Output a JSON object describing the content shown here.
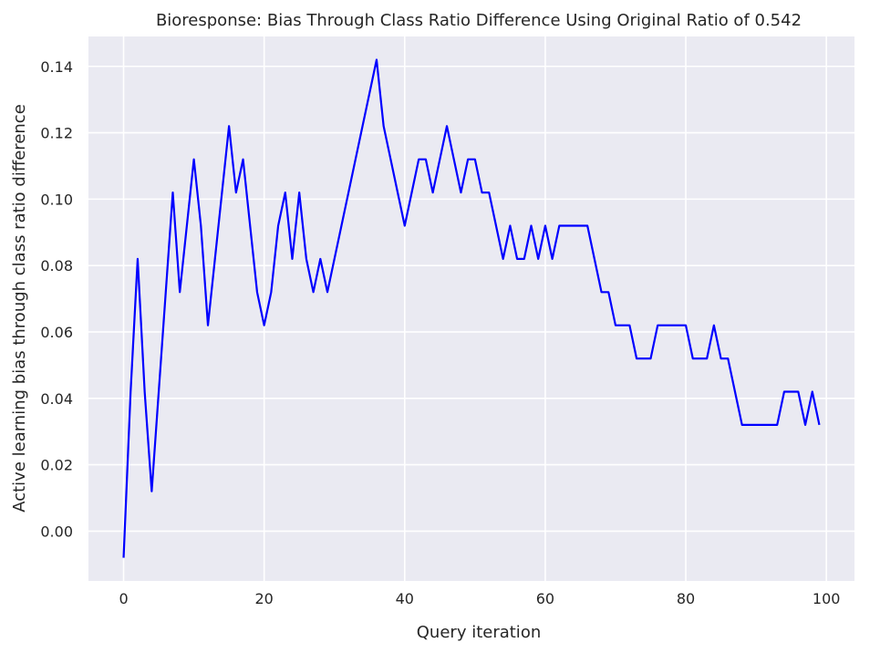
{
  "chart_data": {
    "type": "line",
    "title": "Bioresponse: Bias Through Class Ratio Difference Using Original Ratio of 0.542",
    "xlabel": "Query iteration",
    "ylabel": "Active learning bias through class ratio difference",
    "xlim": [
      -5,
      104
    ],
    "ylim": [
      -0.015,
      0.149
    ],
    "xticks": [
      0,
      20,
      40,
      60,
      80,
      100
    ],
    "xtick_labels": [
      "0",
      "20",
      "40",
      "60",
      "80",
      "100"
    ],
    "yticks": [
      0.0,
      0.02,
      0.04,
      0.06,
      0.08,
      0.1,
      0.12,
      0.14
    ],
    "ytick_labels": [
      "0.00",
      "0.02",
      "0.04",
      "0.06",
      "0.08",
      "0.10",
      "0.12",
      "0.14"
    ],
    "grid": true,
    "background": "#eaeaf2",
    "grid_color": "#ffffff",
    "series": [
      {
        "color": "#0000ff",
        "x": [
          0,
          1,
          2,
          3,
          4,
          5,
          6,
          7,
          8,
          9,
          10,
          11,
          12,
          13,
          14,
          15,
          16,
          17,
          18,
          19,
          20,
          21,
          22,
          23,
          24,
          25,
          26,
          27,
          28,
          29,
          30,
          31,
          32,
          33,
          34,
          35,
          36,
          37,
          38,
          39,
          40,
          41,
          42,
          43,
          44,
          45,
          46,
          47,
          48,
          49,
          50,
          51,
          52,
          53,
          54,
          55,
          56,
          57,
          58,
          59,
          60,
          61,
          62,
          63,
          64,
          65,
          66,
          67,
          68,
          69,
          70,
          71,
          72,
          73,
          74,
          75,
          76,
          77,
          78,
          79,
          80,
          81,
          82,
          83,
          84,
          85,
          86,
          87,
          88,
          89,
          90,
          91,
          92,
          93,
          94,
          95,
          96,
          97,
          98,
          99
        ],
        "values": [
          -0.008,
          0.042,
          0.082,
          0.042,
          0.012,
          0.042,
          0.072,
          0.102,
          0.072,
          0.092,
          0.112,
          0.092,
          0.062,
          0.082,
          0.102,
          0.122,
          0.102,
          0.112,
          0.092,
          0.072,
          0.062,
          0.072,
          0.092,
          0.102,
          0.082,
          0.102,
          0.082,
          0.072,
          0.082,
          0.072,
          0.082,
          0.092,
          0.102,
          0.112,
          0.122,
          0.132,
          0.142,
          0.122,
          0.112,
          0.102,
          0.092,
          0.102,
          0.112,
          0.112,
          0.102,
          0.112,
          0.122,
          0.112,
          0.102,
          0.112,
          0.112,
          0.102,
          0.102,
          0.092,
          0.082,
          0.092,
          0.082,
          0.082,
          0.092,
          0.082,
          0.092,
          0.082,
          0.092,
          0.092,
          0.092,
          0.092,
          0.092,
          0.082,
          0.072,
          0.072,
          0.062,
          0.062,
          0.062,
          0.052,
          0.052,
          0.052,
          0.062,
          0.062,
          0.062,
          0.062,
          0.062,
          0.052,
          0.052,
          0.052,
          0.062,
          0.052,
          0.052,
          0.042,
          0.032,
          0.032,
          0.032,
          0.032,
          0.032,
          0.032,
          0.042,
          0.042,
          0.042,
          0.032,
          0.042,
          0.032
        ]
      }
    ]
  }
}
